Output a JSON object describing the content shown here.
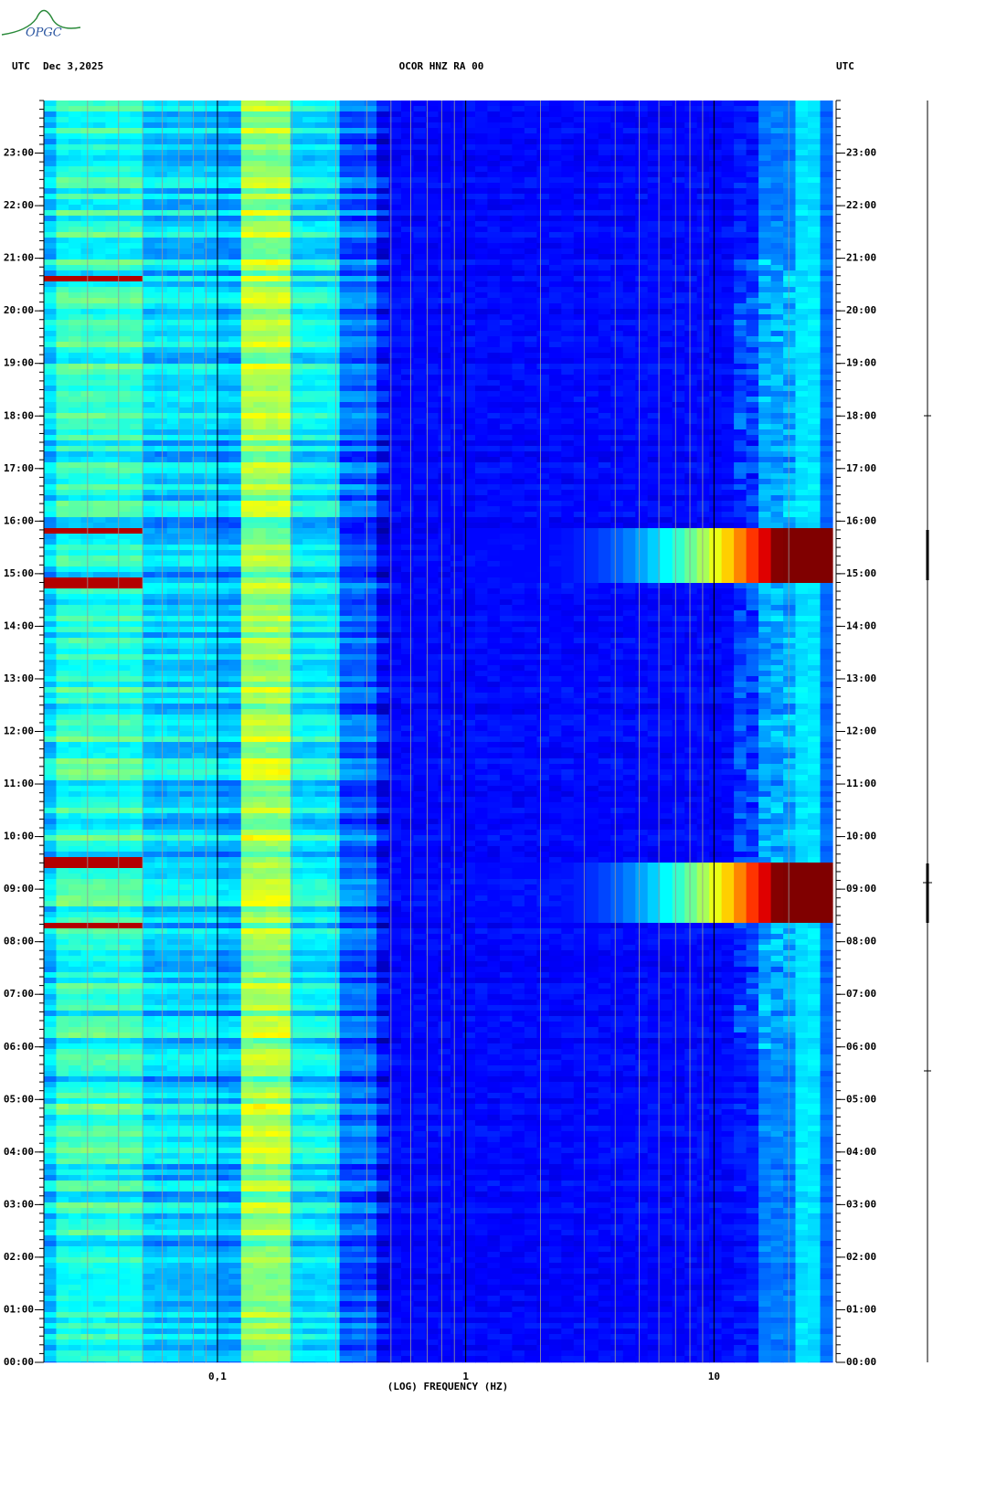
{
  "logo": "OPGC",
  "chart_data": {
    "type": "spectrogram",
    "title": "OCOR HNZ RA 00",
    "date": "Dec 3,2025",
    "left_zone": "UTC",
    "right_zone": "UTC",
    "x_label": "(LOG) FREQUENCY (HZ)",
    "x_log": true,
    "xlim": [
      0.02,
      30
    ],
    "xticks": [
      {
        "value": 0.1,
        "label": "0,1"
      },
      1,
      10
    ],
    "ylim": [
      0,
      24
    ],
    "yticks": [
      {
        "value": 0,
        "label": "00:00"
      },
      {
        "value": 1,
        "label": "01:00"
      },
      {
        "value": 2,
        "label": "02:00"
      },
      {
        "value": 3,
        "label": "03:00"
      },
      {
        "value": 4,
        "label": "04:00"
      },
      {
        "value": 5,
        "label": "05:00"
      },
      {
        "value": 6,
        "label": "06:00"
      },
      {
        "value": 7,
        "label": "07:00"
      },
      {
        "value": 8,
        "label": "08:00"
      },
      {
        "value": 9,
        "label": "09:00"
      },
      {
        "value": 10,
        "label": "10:00"
      },
      {
        "value": 11,
        "label": "11:00"
      },
      {
        "value": 12,
        "label": "12:00"
      },
      {
        "value": 13,
        "label": "13:00"
      },
      {
        "value": 14,
        "label": "14:00"
      },
      {
        "value": 15,
        "label": "15:00"
      },
      {
        "value": 16,
        "label": "16:00"
      },
      {
        "value": 17,
        "label": "17:00"
      },
      {
        "value": 18,
        "label": "18:00"
      },
      {
        "value": 19,
        "label": "19:00"
      },
      {
        "value": 20,
        "label": "20:00"
      },
      {
        "value": 21,
        "label": "21:00"
      },
      {
        "value": 22,
        "label": "22:00"
      },
      {
        "value": 23,
        "label": "23:00"
      }
    ]
  }
}
